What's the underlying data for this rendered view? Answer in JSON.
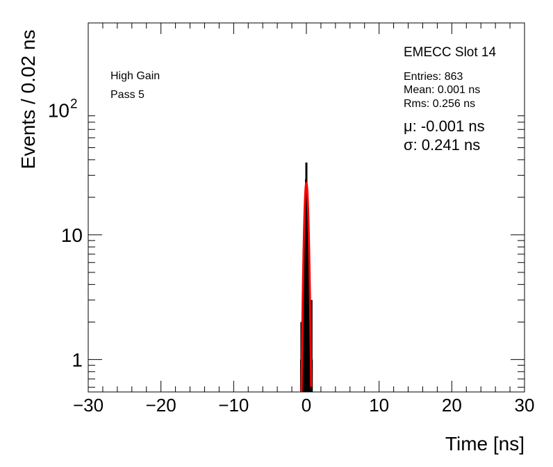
{
  "chart_data": {
    "type": "histogram",
    "title": "EMECC Slot 14",
    "xlabel": "Time [ns]",
    "ylabel": "Events / 0.02 ns",
    "xlim": [
      -30,
      30
    ],
    "ylim": [
      0.55,
      500
    ],
    "yscale": "log",
    "grid": false,
    "x_ticks": [
      -30,
      -20,
      -10,
      0,
      10,
      20,
      30
    ],
    "y_ticks": [
      {
        "value": 1,
        "label": "1"
      },
      {
        "value": 10,
        "label": "10"
      },
      {
        "value": 100,
        "label": "10",
        "exponent": "2"
      }
    ],
    "annotations": {
      "gain": "High Gain",
      "pass": "Pass 5"
    },
    "stats": {
      "entries": "Entries: 863",
      "mean": "Mean: 0.001 ns",
      "rms": "Rms: 0.256 ns",
      "mu": "μ: -0.001 ns",
      "sigma": "σ: 0.241 ns"
    },
    "histogram": {
      "bin_width": 0.02,
      "x": [
        -0.72,
        -0.68,
        -0.62,
        -0.5,
        -0.4,
        -0.3,
        -0.2,
        -0.1,
        -0.04,
        0.0,
        0.04,
        0.1,
        0.2,
        0.3,
        0.4,
        0.5,
        0.62,
        0.7,
        0.74
      ],
      "values": [
        1,
        2,
        1,
        2,
        3,
        5,
        8,
        15,
        28,
        38,
        26,
        16,
        9,
        5,
        3,
        2,
        1,
        3,
        1
      ],
      "color": "#000000"
    },
    "fit": {
      "type": "gaussian",
      "mean": -0.001,
      "sigma": 0.241,
      "amplitude": 26,
      "color": "#ff0000"
    }
  }
}
